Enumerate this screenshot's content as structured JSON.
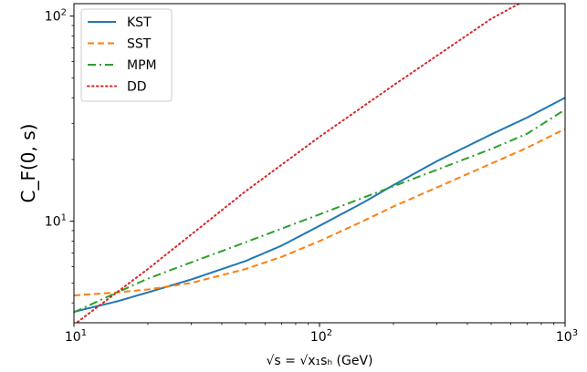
{
  "chart_data": {
    "type": "line",
    "x_scale": "log",
    "y_scale": "log",
    "xlim": [
      10,
      1000
    ],
    "ylim": [
      3.2,
      115
    ],
    "xlabel": "√s = √x₁sₕ (GeV)",
    "ylabel": "C_F(0, s)",
    "x_ticks": [
      {
        "value": 10,
        "base": "10",
        "exp": "1"
      },
      {
        "value": 100,
        "base": "10",
        "exp": "2"
      },
      {
        "value": 1000,
        "base": "10",
        "exp": "3"
      }
    ],
    "y_ticks": [
      {
        "value": 10,
        "base": "10",
        "exp": "1"
      },
      {
        "value": 100,
        "base": "10",
        "exp": "2"
      }
    ],
    "legend_position": "top-left",
    "grid": false,
    "series": [
      {
        "name": "KST",
        "color": "#1f77b4",
        "style": "solid",
        "points": [
          [
            10,
            3.62
          ],
          [
            15,
            4.07
          ],
          [
            20,
            4.5
          ],
          [
            30,
            5.2
          ],
          [
            50,
            6.4
          ],
          [
            70,
            7.6
          ],
          [
            100,
            9.5
          ],
          [
            150,
            12.3
          ],
          [
            200,
            15.0
          ],
          [
            300,
            19.6
          ],
          [
            500,
            26.5
          ],
          [
            700,
            32.0
          ],
          [
            1000,
            40.0
          ]
        ]
      },
      {
        "name": "SST",
        "color": "#ff7f0e",
        "style": "dashed",
        "points": [
          [
            10,
            4.35
          ],
          [
            15,
            4.5
          ],
          [
            20,
            4.65
          ],
          [
            30,
            5.0
          ],
          [
            50,
            5.85
          ],
          [
            70,
            6.7
          ],
          [
            100,
            8.0
          ],
          [
            150,
            10.0
          ],
          [
            200,
            11.8
          ],
          [
            300,
            14.6
          ],
          [
            500,
            19.1
          ],
          [
            700,
            22.8
          ],
          [
            1000,
            28.2
          ]
        ]
      },
      {
        "name": "MPM",
        "color": "#2ca02c",
        "style": "dashdot",
        "points": [
          [
            10,
            3.6
          ],
          [
            15,
            4.5
          ],
          [
            20,
            5.25
          ],
          [
            30,
            6.3
          ],
          [
            50,
            7.9
          ],
          [
            70,
            9.2
          ],
          [
            100,
            10.8
          ],
          [
            150,
            13.0
          ],
          [
            200,
            14.8
          ],
          [
            300,
            17.8
          ],
          [
            500,
            22.5
          ],
          [
            700,
            26.7
          ],
          [
            1000,
            35.0
          ]
        ]
      },
      {
        "name": "DD",
        "color": "#d62728",
        "style": "dotted",
        "points": [
          [
            10,
            3.13
          ],
          [
            20,
            5.85
          ],
          [
            50,
            14.0
          ],
          [
            100,
            25.8
          ],
          [
            200,
            46.0
          ],
          [
            300,
            64.0
          ],
          [
            500,
            97.0
          ],
          [
            650,
            115.0
          ]
        ]
      }
    ]
  }
}
